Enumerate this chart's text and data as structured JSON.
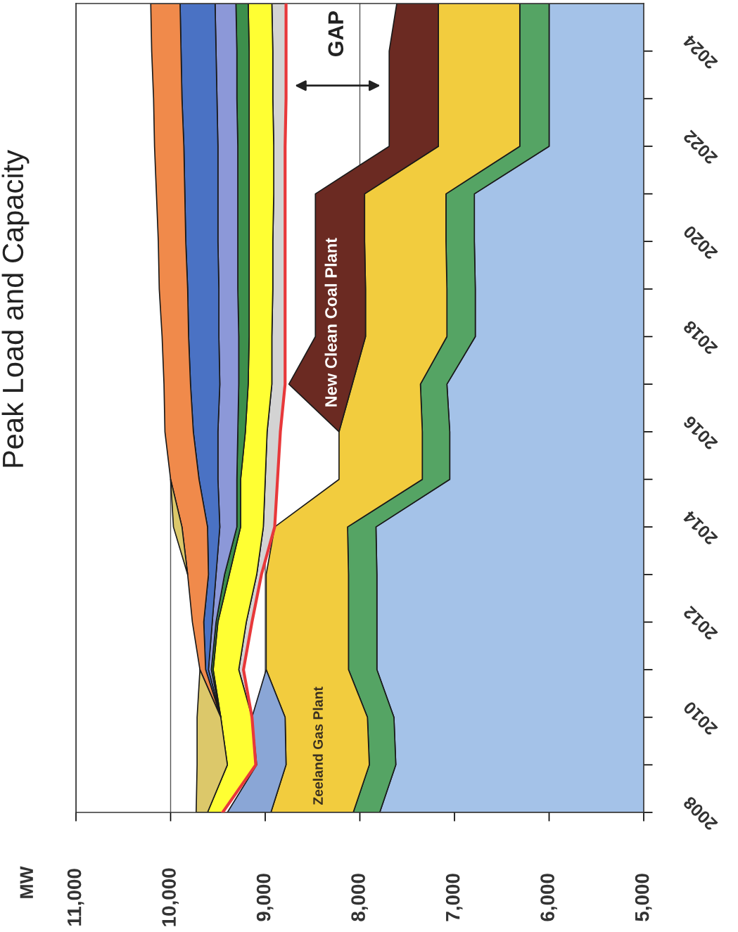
{
  "chart_data": {
    "type": "area",
    "title": "Peak Load and Capacity",
    "orientation": "horizontal",
    "x": [
      2008,
      2009,
      2010,
      2011,
      2012,
      2013,
      2014,
      2015,
      2016,
      2017,
      2018,
      2019,
      2020,
      2021,
      2022,
      2023,
      2024,
      2025
    ],
    "xlim": [
      11000,
      5000
    ],
    "xticks": [
      {
        "value": 11000,
        "label": "11,000"
      },
      {
        "value": 10000,
        "label": "10,000"
      },
      {
        "value": 9000,
        "label": "9,000"
      },
      {
        "value": 8000,
        "label": "8,000"
      },
      {
        "value": 7000,
        "label": "7,000"
      },
      {
        "value": 6000,
        "label": "6,000"
      },
      {
        "value": 5000,
        "label": "5,000"
      }
    ],
    "ylim": [
      2008,
      2025
    ],
    "yticks": [
      2008,
      {
        "value": 2009,
        "label": null
      },
      2010,
      {
        "value": 2011,
        "label": null
      },
      2012,
      {
        "value": 2013,
        "label": null
      },
      2014,
      {
        "value": 2015,
        "label": null
      },
      2016,
      {
        "value": 2017,
        "label": null
      },
      2018,
      {
        "value": 2019,
        "label": null
      },
      2020,
      {
        "value": 2021,
        "label": null
      },
      2022,
      {
        "value": 2023,
        "label": null
      },
      2024
    ],
    "grid": "x",
    "series": [
      {
        "color": "#a4c2e8",
        "values": [
          7790,
          7620,
          7640,
          7820,
          7820,
          7820,
          7830,
          7050,
          7050,
          7080,
          6780,
          6780,
          6790,
          6790,
          6000,
          6000,
          6000,
          6000
        ]
      },
      {
        "color": "#55a464",
        "values": [
          8070,
          7900,
          7920,
          8120,
          8120,
          8120,
          8130,
          7340,
          7340,
          7360,
          7080,
          7080,
          7090,
          7090,
          6310,
          6310,
          6310,
          6310
        ]
      },
      {
        "name": "Zeeland Gas Plant",
        "color": "#f2cc3e",
        "values": [
          8940,
          8780,
          8790,
          8990,
          8990,
          8990,
          8900,
          8220,
          8220,
          8080,
          7940,
          7940,
          7950,
          7950,
          7170,
          7170,
          7170,
          7170
        ]
      },
      {
        "color": "#8aa6d6",
        "values": [
          9400,
          9090,
          9140,
          8990,
          null,
          null,
          null,
          null,
          null,
          null,
          null,
          null,
          null,
          null,
          null,
          null,
          null,
          null
        ]
      },
      {
        "name": "New Clean Coal Plant",
        "color": "#6b2a22",
        "values": [
          null,
          null,
          null,
          null,
          null,
          null,
          null,
          null,
          8220,
          8750,
          8470,
          8470,
          8470,
          8470,
          7690,
          7690,
          7690,
          7610
        ]
      },
      {
        "type": "line",
        "color": "#e8383a",
        "values": [
          9450,
          9100,
          9140,
          9230,
          9140,
          9040,
          8900,
          8870,
          8840,
          8790,
          8790,
          8790,
          8790,
          8790,
          8790,
          8780,
          8780,
          8780
        ]
      },
      {
        "color": "#d3d3d3",
        "values": [
          null,
          null,
          9140,
          9280,
          9200,
          9090,
          9020,
          9000,
          8980,
          8930,
          8930,
          8920,
          8920,
          8910,
          8910,
          8920,
          8920,
          8930
        ]
      },
      {
        "color": "#ffff33",
        "values": [
          9610,
          9400,
          9470,
          9550,
          9500,
          9380,
          9260,
          9260,
          9210,
          9180,
          9170,
          9170,
          9170,
          9170,
          9170,
          9170,
          9170,
          9180
        ]
      },
      {
        "color": "#3d8f4c",
        "values": [
          null,
          null,
          9470,
          9570,
          9520,
          9430,
          9300,
          9300,
          9290,
          9280,
          9280,
          9290,
          9290,
          9290,
          9290,
          9300,
          9300,
          9310
        ]
      },
      {
        "color": "#8c98d8",
        "values": [
          null,
          null,
          9470,
          9600,
          9560,
          9520,
          9480,
          9500,
          9500,
          9480,
          9490,
          9490,
          9500,
          9500,
          9500,
          9510,
          9520,
          9530
        ]
      },
      {
        "color": "#4a72c4",
        "values": [
          null,
          null,
          9470,
          9630,
          9650,
          9600,
          9610,
          9700,
          9760,
          9790,
          9810,
          9820,
          9840,
          9850,
          9860,
          9880,
          9890,
          9900
        ]
      },
      {
        "color": "#f08a4b",
        "values": [
          null,
          null,
          9470,
          9690,
          9770,
          9820,
          9880,
          10000,
          10060,
          10070,
          10090,
          10120,
          10130,
          10150,
          10170,
          10180,
          10200,
          10210
        ]
      },
      {
        "color": "#dcc86a",
        "values": [
          9730,
          9720,
          9720,
          9690,
          null,
          9820,
          9970,
          10000,
          null,
          null,
          null,
          null,
          null,
          null,
          null,
          null,
          null,
          null
        ]
      }
    ],
    "annotations": [
      "GAP",
      "MW"
    ]
  }
}
